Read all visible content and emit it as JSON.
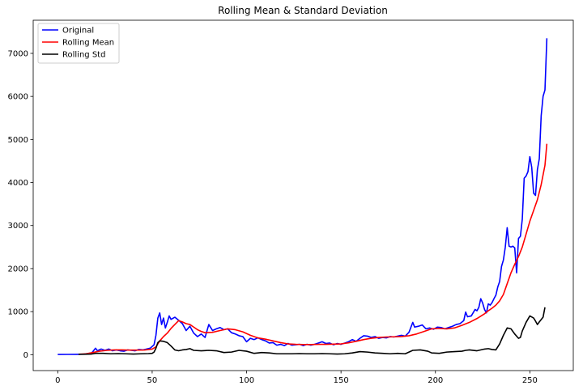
{
  "chart_data": {
    "type": "line",
    "title": "Rolling Mean & Standard Deviation",
    "xlabel": "",
    "ylabel": "",
    "xlim": [
      -13,
      273
    ],
    "ylim": [
      -370,
      7770
    ],
    "xticks": [
      0,
      50,
      100,
      150,
      200,
      250
    ],
    "yticks": [
      0,
      1000,
      2000,
      3000,
      4000,
      5000,
      6000,
      7000
    ],
    "grid": false,
    "legend_position": "top-left",
    "series": [
      {
        "name": "Original",
        "color": "#0000ff",
        "points": [
          [
            0,
            5
          ],
          [
            5,
            6
          ],
          [
            10,
            8
          ],
          [
            14,
            12
          ],
          [
            18,
            40
          ],
          [
            20,
            150
          ],
          [
            21,
            90
          ],
          [
            23,
            130
          ],
          [
            25,
            100
          ],
          [
            27,
            130
          ],
          [
            29,
            90
          ],
          [
            31,
            110
          ],
          [
            33,
            90
          ],
          [
            35,
            80
          ],
          [
            37,
            110
          ],
          [
            39,
            100
          ],
          [
            41,
            90
          ],
          [
            43,
            120
          ],
          [
            45,
            110
          ],
          [
            47,
            130
          ],
          [
            49,
            150
          ],
          [
            51,
            230
          ],
          [
            52,
            450
          ],
          [
            53,
            850
          ],
          [
            54,
            970
          ],
          [
            55,
            700
          ],
          [
            56,
            850
          ],
          [
            57,
            620
          ],
          [
            58,
            750
          ],
          [
            59,
            900
          ],
          [
            60,
            820
          ],
          [
            62,
            870
          ],
          [
            64,
            800
          ],
          [
            66,
            720
          ],
          [
            68,
            560
          ],
          [
            70,
            660
          ],
          [
            72,
            500
          ],
          [
            74,
            420
          ],
          [
            76,
            480
          ],
          [
            78,
            400
          ],
          [
            80,
            700
          ],
          [
            82,
            560
          ],
          [
            84,
            600
          ],
          [
            86,
            630
          ],
          [
            88,
            580
          ],
          [
            90,
            600
          ],
          [
            92,
            510
          ],
          [
            94,
            480
          ],
          [
            96,
            440
          ],
          [
            98,
            420
          ],
          [
            100,
            300
          ],
          [
            102,
            380
          ],
          [
            104,
            350
          ],
          [
            106,
            390
          ],
          [
            108,
            350
          ],
          [
            110,
            320
          ],
          [
            112,
            270
          ],
          [
            114,
            280
          ],
          [
            116,
            220
          ],
          [
            118,
            240
          ],
          [
            120,
            210
          ],
          [
            122,
            260
          ],
          [
            124,
            220
          ],
          [
            126,
            230
          ],
          [
            128,
            240
          ],
          [
            130,
            210
          ],
          [
            132,
            240
          ],
          [
            134,
            220
          ],
          [
            136,
            240
          ],
          [
            138,
            270
          ],
          [
            140,
            300
          ],
          [
            142,
            260
          ],
          [
            144,
            270
          ],
          [
            146,
            230
          ],
          [
            148,
            260
          ],
          [
            150,
            240
          ],
          [
            152,
            270
          ],
          [
            154,
            300
          ],
          [
            156,
            350
          ],
          [
            158,
            310
          ],
          [
            160,
            380
          ],
          [
            162,
            440
          ],
          [
            164,
            430
          ],
          [
            166,
            400
          ],
          [
            168,
            420
          ],
          [
            170,
            380
          ],
          [
            172,
            400
          ],
          [
            174,
            390
          ],
          [
            176,
            420
          ],
          [
            178,
            410
          ],
          [
            180,
            430
          ],
          [
            182,
            450
          ],
          [
            184,
            430
          ],
          [
            186,
            520
          ],
          [
            188,
            750
          ],
          [
            189,
            640
          ],
          [
            191,
            660
          ],
          [
            193,
            690
          ],
          [
            195,
            600
          ],
          [
            197,
            620
          ],
          [
            199,
            590
          ],
          [
            201,
            640
          ],
          [
            203,
            630
          ],
          [
            205,
            600
          ],
          [
            207,
            630
          ],
          [
            209,
            660
          ],
          [
            211,
            700
          ],
          [
            213,
            720
          ],
          [
            215,
            790
          ],
          [
            216,
            990
          ],
          [
            217,
            880
          ],
          [
            219,
            900
          ],
          [
            221,
            1050
          ],
          [
            222,
            1020
          ],
          [
            223,
            1100
          ],
          [
            224,
            1300
          ],
          [
            225,
            1200
          ],
          [
            226,
            1050
          ],
          [
            227,
            970
          ],
          [
            228,
            1180
          ],
          [
            229,
            1150
          ],
          [
            230,
            1210
          ],
          [
            231,
            1300
          ],
          [
            232,
            1380
          ],
          [
            233,
            1570
          ],
          [
            234,
            1700
          ],
          [
            235,
            2050
          ],
          [
            236,
            2200
          ],
          [
            237,
            2500
          ],
          [
            238,
            2950
          ],
          [
            239,
            2520
          ],
          [
            240,
            2500
          ],
          [
            241,
            2520
          ],
          [
            242,
            2480
          ],
          [
            243,
            1900
          ],
          [
            244,
            2700
          ],
          [
            245,
            2750
          ],
          [
            246,
            3150
          ],
          [
            247,
            4100
          ],
          [
            248,
            4150
          ],
          [
            249,
            4250
          ],
          [
            250,
            4600
          ],
          [
            251,
            4350
          ],
          [
            252,
            3750
          ],
          [
            253,
            3700
          ],
          [
            254,
            4300
          ],
          [
            255,
            4550
          ],
          [
            256,
            5550
          ],
          [
            257,
            6000
          ],
          [
            258,
            6150
          ],
          [
            259,
            7350
          ]
        ]
      },
      {
        "name": "Rolling Mean",
        "color": "#ff0000",
        "points": [
          [
            11,
            10
          ],
          [
            15,
            20
          ],
          [
            18,
            45
          ],
          [
            22,
            80
          ],
          [
            26,
            100
          ],
          [
            30,
            110
          ],
          [
            34,
            110
          ],
          [
            38,
            105
          ],
          [
            42,
            105
          ],
          [
            46,
            108
          ],
          [
            50,
            130
          ],
          [
            52,
            180
          ],
          [
            54,
            320
          ],
          [
            56,
            420
          ],
          [
            58,
            500
          ],
          [
            60,
            610
          ],
          [
            62,
            700
          ],
          [
            64,
            790
          ],
          [
            66,
            760
          ],
          [
            68,
            720
          ],
          [
            70,
            700
          ],
          [
            72,
            640
          ],
          [
            74,
            580
          ],
          [
            76,
            540
          ],
          [
            78,
            510
          ],
          [
            82,
            520
          ],
          [
            86,
            560
          ],
          [
            90,
            600
          ],
          [
            94,
            580
          ],
          [
            98,
            530
          ],
          [
            102,
            450
          ],
          [
            106,
            390
          ],
          [
            110,
            360
          ],
          [
            114,
            320
          ],
          [
            118,
            280
          ],
          [
            122,
            250
          ],
          [
            126,
            240
          ],
          [
            130,
            235
          ],
          [
            134,
            235
          ],
          [
            138,
            240
          ],
          [
            142,
            240
          ],
          [
            146,
            245
          ],
          [
            150,
            250
          ],
          [
            154,
            275
          ],
          [
            158,
            310
          ],
          [
            162,
            350
          ],
          [
            166,
            380
          ],
          [
            170,
            400
          ],
          [
            174,
            410
          ],
          [
            178,
            415
          ],
          [
            182,
            420
          ],
          [
            186,
            440
          ],
          [
            190,
            480
          ],
          [
            194,
            540
          ],
          [
            198,
            600
          ],
          [
            202,
            610
          ],
          [
            206,
            600
          ],
          [
            210,
            620
          ],
          [
            214,
            680
          ],
          [
            218,
            750
          ],
          [
            222,
            840
          ],
          [
            226,
            950
          ],
          [
            228,
            1020
          ],
          [
            230,
            1080
          ],
          [
            232,
            1150
          ],
          [
            234,
            1250
          ],
          [
            236,
            1400
          ],
          [
            238,
            1650
          ],
          [
            240,
            1900
          ],
          [
            242,
            2100
          ],
          [
            244,
            2280
          ],
          [
            246,
            2500
          ],
          [
            248,
            2800
          ],
          [
            250,
            3100
          ],
          [
            252,
            3350
          ],
          [
            254,
            3600
          ],
          [
            256,
            3950
          ],
          [
            258,
            4400
          ],
          [
            259,
            4900
          ]
        ]
      },
      {
        "name": "Rolling Std",
        "color": "#000000",
        "points": [
          [
            11,
            10
          ],
          [
            14,
            10
          ],
          [
            18,
            15
          ],
          [
            20,
            30
          ],
          [
            24,
            30
          ],
          [
            28,
            20
          ],
          [
            32,
            25
          ],
          [
            36,
            20
          ],
          [
            40,
            15
          ],
          [
            44,
            20
          ],
          [
            48,
            25
          ],
          [
            50,
            30
          ],
          [
            51,
            60
          ],
          [
            52,
            150
          ],
          [
            53,
            280
          ],
          [
            54,
            320
          ],
          [
            56,
            310
          ],
          [
            58,
            280
          ],
          [
            60,
            200
          ],
          [
            62,
            110
          ],
          [
            64,
            90
          ],
          [
            66,
            110
          ],
          [
            68,
            120
          ],
          [
            70,
            140
          ],
          [
            72,
            100
          ],
          [
            76,
            90
          ],
          [
            80,
            100
          ],
          [
            84,
            90
          ],
          [
            88,
            50
          ],
          [
            92,
            60
          ],
          [
            96,
            100
          ],
          [
            100,
            80
          ],
          [
            104,
            30
          ],
          [
            108,
            50
          ],
          [
            112,
            40
          ],
          [
            116,
            20
          ],
          [
            120,
            20
          ],
          [
            124,
            20
          ],
          [
            128,
            25
          ],
          [
            132,
            20
          ],
          [
            136,
            20
          ],
          [
            140,
            25
          ],
          [
            144,
            20
          ],
          [
            148,
            15
          ],
          [
            152,
            20
          ],
          [
            156,
            40
          ],
          [
            160,
            70
          ],
          [
            164,
            60
          ],
          [
            168,
            40
          ],
          [
            172,
            30
          ],
          [
            176,
            20
          ],
          [
            180,
            30
          ],
          [
            184,
            20
          ],
          [
            186,
            60
          ],
          [
            188,
            100
          ],
          [
            192,
            110
          ],
          [
            196,
            80
          ],
          [
            198,
            40
          ],
          [
            202,
            30
          ],
          [
            206,
            60
          ],
          [
            210,
            70
          ],
          [
            214,
            80
          ],
          [
            216,
            100
          ],
          [
            218,
            110
          ],
          [
            222,
            90
          ],
          [
            226,
            130
          ],
          [
            228,
            140
          ],
          [
            230,
            120
          ],
          [
            232,
            110
          ],
          [
            234,
            250
          ],
          [
            236,
            450
          ],
          [
            238,
            620
          ],
          [
            240,
            600
          ],
          [
            242,
            480
          ],
          [
            244,
            380
          ],
          [
            245,
            400
          ],
          [
            246,
            550
          ],
          [
            248,
            750
          ],
          [
            250,
            900
          ],
          [
            252,
            850
          ],
          [
            253,
            780
          ],
          [
            254,
            700
          ],
          [
            255,
            760
          ],
          [
            257,
            870
          ],
          [
            258,
            1100
          ]
        ]
      }
    ]
  }
}
